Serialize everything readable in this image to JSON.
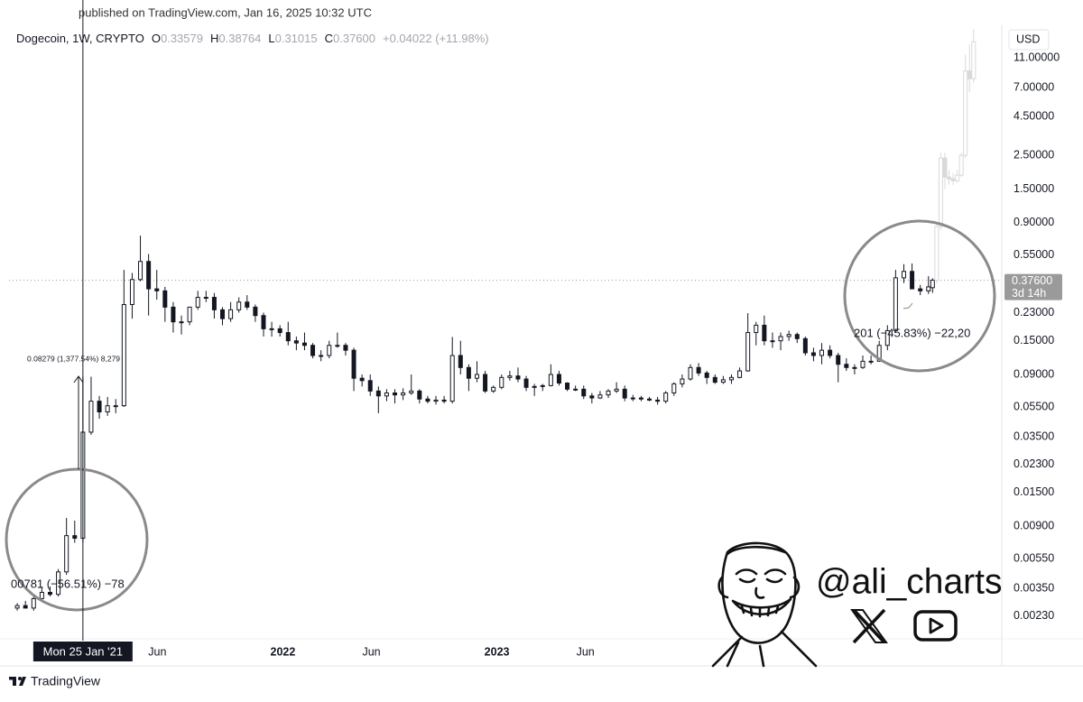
{
  "header": "published on TradingView.com, Jan 16, 2025 10:32 UTC",
  "footer": "TradingView",
  "watermark": "@ali_charts",
  "chart_data": {
    "type": "candlestick",
    "log_scale": true,
    "grid": false,
    "currency": "USD",
    "legend": {
      "symbol": "Dogecoin, 1W, CRYPTO",
      "items": [
        {
          "key": "O",
          "value": 0.33579
        },
        {
          "key": "H",
          "value": 0.38764
        },
        {
          "key": "L",
          "value": 0.31015
        },
        {
          "key": "C",
          "value": 0.376,
          "label": "0.37600"
        }
      ],
      "change": "+0.04022 (+11.98%)"
    },
    "last_price": {
      "value": 0.376,
      "label": "0.37600",
      "countdown": "3d 14h"
    },
    "crosshair": {
      "x": "2021-01-25",
      "label": "Mon 25 Jan '21"
    },
    "annotations": [
      {
        "text": "0.08279 (1,377.54%) 8,279"
      },
      {
        "text": "00781 (−56.51%) −78"
      },
      {
        "text": "201 (−45.83%) −22,20"
      }
    ],
    "xlim": [
      "2020-09-21",
      "2025-05-11"
    ],
    "xticks": [
      {
        "value": "2021-06-01",
        "label": "Jun"
      },
      {
        "value": "2022-01-01",
        "label": "2022"
      },
      {
        "value": "2022-06-01",
        "label": "Jun"
      },
      {
        "value": "2023-01-01",
        "label": "2023"
      },
      {
        "value": "2023-06-01",
        "label": "Jun"
      }
    ],
    "ylim": [
      0.00163,
      18
    ],
    "yticks": [
      {
        "value": 11,
        "label": "11.00000"
      },
      {
        "value": 7,
        "label": "7.00000"
      },
      {
        "value": 4.5,
        "label": "4.50000"
      },
      {
        "value": 2.5,
        "label": "2.50000"
      },
      {
        "value": 1.5,
        "label": "1.50000"
      },
      {
        "value": 0.9,
        "label": "0.90000"
      },
      {
        "value": 0.55,
        "label": "0.55000"
      },
      {
        "value": 0.23,
        "label": "0.23000"
      },
      {
        "value": 0.15,
        "label": "0.15000"
      },
      {
        "value": 0.09,
        "label": "0.09000"
      },
      {
        "value": 0.055,
        "label": "0.05500"
      },
      {
        "value": 0.035,
        "label": "0.03500"
      },
      {
        "value": 0.023,
        "label": "0.02300"
      },
      {
        "value": 0.015,
        "label": "0.01500"
      },
      {
        "value": 0.009,
        "label": "0.00900"
      },
      {
        "value": 0.0055,
        "label": "0.00550"
      },
      {
        "value": 0.0035,
        "label": "0.00350"
      },
      {
        "value": 0.0023,
        "label": "0.00230"
      }
    ],
    "series": [
      {
        "color": "#131722",
        "up_fill": "#ffffff",
        "x": [
          "2020-10-05",
          "2020-10-19",
          "2020-11-02",
          "2020-11-16",
          "2020-11-30",
          "2020-12-14",
          "2020-12-28",
          "2021-01-11",
          "2021-01-25",
          "2021-02-08",
          "2021-02-22",
          "2021-03-08",
          "2021-03-22",
          "2021-04-05",
          "2021-04-19",
          "2021-05-03",
          "2021-05-17",
          "2021-05-31",
          "2021-06-14",
          "2021-06-28",
          "2021-07-12",
          "2021-07-26",
          "2021-08-09",
          "2021-08-23",
          "2021-09-06",
          "2021-09-20",
          "2021-10-04",
          "2021-10-18",
          "2021-11-01",
          "2021-11-15",
          "2021-11-29",
          "2021-12-13",
          "2021-12-27",
          "2022-01-10",
          "2022-01-24",
          "2022-02-07",
          "2022-02-21",
          "2022-03-07",
          "2022-03-21",
          "2022-04-04",
          "2022-04-18",
          "2022-05-02",
          "2022-05-16",
          "2022-05-30",
          "2022-06-13",
          "2022-06-27",
          "2022-07-11",
          "2022-07-25",
          "2022-08-08",
          "2022-08-22",
          "2022-09-05",
          "2022-09-19",
          "2022-10-03",
          "2022-10-17",
          "2022-10-31",
          "2022-11-14",
          "2022-11-28",
          "2022-12-12",
          "2022-12-26",
          "2023-01-09",
          "2023-01-23",
          "2023-02-06",
          "2023-02-20",
          "2023-03-06",
          "2023-03-20",
          "2023-04-03",
          "2023-04-17",
          "2023-05-01",
          "2023-05-15",
          "2023-05-29",
          "2023-06-12",
          "2023-06-26",
          "2023-07-10",
          "2023-07-24",
          "2023-08-07",
          "2023-08-21",
          "2023-09-04",
          "2023-09-18",
          "2023-10-02",
          "2023-10-16",
          "2023-10-30",
          "2023-11-13",
          "2023-11-27",
          "2023-12-11",
          "2023-12-25",
          "2024-01-08",
          "2024-01-22",
          "2024-02-05",
          "2024-02-19",
          "2024-03-04",
          "2024-03-18",
          "2024-04-01",
          "2024-04-15",
          "2024-04-29",
          "2024-05-13",
          "2024-05-27",
          "2024-06-10",
          "2024-06-24",
          "2024-07-08",
          "2024-07-22",
          "2024-08-05",
          "2024-08-19",
          "2024-09-02",
          "2024-09-16",
          "2024-09-30",
          "2024-10-14",
          "2024-10-28",
          "2024-11-11",
          "2024-11-25",
          "2024-12-09",
          "2024-12-23",
          "2025-01-06",
          "2025-01-13"
        ],
        "ohlc": [
          [
            0.0026,
            0.0028,
            0.0025,
            0.0027
          ],
          [
            0.0027,
            0.0029,
            0.0026,
            0.0026
          ],
          [
            0.0026,
            0.0031,
            0.0025,
            0.003
          ],
          [
            0.003,
            0.0036,
            0.0029,
            0.0033
          ],
          [
            0.0033,
            0.0036,
            0.0031,
            0.0032
          ],
          [
            0.0032,
            0.0047,
            0.0031,
            0.0045
          ],
          [
            0.0045,
            0.0102,
            0.0043,
            0.0078
          ],
          [
            0.0078,
            0.0098,
            0.007,
            0.0075
          ],
          [
            0.0075,
            0.087,
            0.007,
            0.0375
          ],
          [
            0.0375,
            0.087,
            0.036,
            0.06
          ],
          [
            0.06,
            0.065,
            0.046,
            0.051
          ],
          [
            0.051,
            0.064,
            0.048,
            0.056
          ],
          [
            0.056,
            0.062,
            0.05,
            0.056
          ],
          [
            0.056,
            0.44,
            0.055,
            0.26
          ],
          [
            0.26,
            0.42,
            0.21,
            0.38
          ],
          [
            0.38,
            0.74,
            0.37,
            0.5
          ],
          [
            0.5,
            0.56,
            0.22,
            0.33
          ],
          [
            0.33,
            0.44,
            0.28,
            0.32
          ],
          [
            0.32,
            0.34,
            0.2,
            0.25
          ],
          [
            0.25,
            0.27,
            0.17,
            0.2
          ],
          [
            0.2,
            0.22,
            0.165,
            0.2
          ],
          [
            0.2,
            0.22,
            0.19,
            0.25
          ],
          [
            0.25,
            0.32,
            0.24,
            0.29
          ],
          [
            0.29,
            0.32,
            0.27,
            0.29
          ],
          [
            0.29,
            0.31,
            0.21,
            0.24
          ],
          [
            0.24,
            0.25,
            0.19,
            0.21
          ],
          [
            0.21,
            0.27,
            0.2,
            0.24
          ],
          [
            0.24,
            0.29,
            0.23,
            0.27
          ],
          [
            0.27,
            0.3,
            0.24,
            0.25
          ],
          [
            0.25,
            0.26,
            0.2,
            0.22
          ],
          [
            0.22,
            0.23,
            0.16,
            0.18
          ],
          [
            0.18,
            0.2,
            0.16,
            0.18
          ],
          [
            0.18,
            0.19,
            0.16,
            0.17
          ],
          [
            0.17,
            0.2,
            0.14,
            0.15
          ],
          [
            0.15,
            0.16,
            0.13,
            0.145
          ],
          [
            0.145,
            0.17,
            0.13,
            0.14
          ],
          [
            0.14,
            0.145,
            0.115,
            0.12
          ],
          [
            0.12,
            0.13,
            0.11,
            0.12
          ],
          [
            0.12,
            0.15,
            0.115,
            0.14
          ],
          [
            0.14,
            0.17,
            0.135,
            0.14
          ],
          [
            0.14,
            0.145,
            0.12,
            0.13
          ],
          [
            0.13,
            0.135,
            0.07,
            0.085
          ],
          [
            0.085,
            0.09,
            0.075,
            0.082
          ],
          [
            0.082,
            0.09,
            0.065,
            0.07
          ],
          [
            0.07,
            0.075,
            0.05,
            0.065
          ],
          [
            0.065,
            0.072,
            0.06,
            0.068
          ],
          [
            0.068,
            0.072,
            0.058,
            0.066
          ],
          [
            0.066,
            0.073,
            0.061,
            0.068
          ],
          [
            0.068,
            0.09,
            0.066,
            0.07
          ],
          [
            0.07,
            0.072,
            0.058,
            0.062
          ],
          [
            0.062,
            0.065,
            0.058,
            0.06
          ],
          [
            0.06,
            0.065,
            0.057,
            0.061
          ],
          [
            0.061,
            0.065,
            0.058,
            0.06
          ],
          [
            0.06,
            0.159,
            0.058,
            0.12
          ],
          [
            0.12,
            0.15,
            0.09,
            0.1
          ],
          [
            0.1,
            0.105,
            0.07,
            0.085
          ],
          [
            0.085,
            0.11,
            0.08,
            0.09
          ],
          [
            0.09,
            0.095,
            0.068,
            0.07
          ],
          [
            0.07,
            0.076,
            0.068,
            0.074
          ],
          [
            0.074,
            0.09,
            0.072,
            0.086
          ],
          [
            0.086,
            0.095,
            0.082,
            0.088
          ],
          [
            0.088,
            0.1,
            0.08,
            0.084
          ],
          [
            0.084,
            0.088,
            0.07,
            0.074
          ],
          [
            0.074,
            0.078,
            0.065,
            0.075
          ],
          [
            0.075,
            0.078,
            0.07,
            0.076
          ],
          [
            0.076,
            0.105,
            0.075,
            0.09
          ],
          [
            0.09,
            0.095,
            0.076,
            0.079
          ],
          [
            0.079,
            0.08,
            0.07,
            0.072
          ],
          [
            0.072,
            0.076,
            0.07,
            0.072
          ],
          [
            0.072,
            0.076,
            0.062,
            0.065
          ],
          [
            0.065,
            0.068,
            0.058,
            0.063
          ],
          [
            0.063,
            0.07,
            0.062,
            0.066
          ],
          [
            0.066,
            0.072,
            0.063,
            0.07
          ],
          [
            0.07,
            0.08,
            0.068,
            0.072
          ],
          [
            0.072,
            0.076,
            0.06,
            0.063
          ],
          [
            0.063,
            0.066,
            0.06,
            0.063
          ],
          [
            0.063,
            0.065,
            0.06,
            0.062
          ],
          [
            0.062,
            0.064,
            0.06,
            0.061
          ],
          [
            0.061,
            0.064,
            0.057,
            0.06
          ],
          [
            0.06,
            0.07,
            0.058,
            0.068
          ],
          [
            0.068,
            0.08,
            0.065,
            0.078
          ],
          [
            0.078,
            0.09,
            0.074,
            0.084
          ],
          [
            0.084,
            0.105,
            0.082,
            0.1
          ],
          [
            0.1,
            0.107,
            0.088,
            0.092
          ],
          [
            0.092,
            0.095,
            0.078,
            0.086
          ],
          [
            0.086,
            0.09,
            0.078,
            0.08
          ],
          [
            0.08,
            0.088,
            0.078,
            0.083
          ],
          [
            0.083,
            0.09,
            0.078,
            0.086
          ],
          [
            0.086,
            0.1,
            0.085,
            0.095
          ],
          [
            0.095,
            0.228,
            0.094,
            0.17
          ],
          [
            0.17,
            0.2,
            0.14,
            0.19
          ],
          [
            0.19,
            0.22,
            0.14,
            0.15
          ],
          [
            0.15,
            0.17,
            0.135,
            0.15
          ],
          [
            0.15,
            0.17,
            0.13,
            0.16
          ],
          [
            0.16,
            0.175,
            0.15,
            0.165
          ],
          [
            0.165,
            0.17,
            0.145,
            0.155
          ],
          [
            0.155,
            0.16,
            0.12,
            0.125
          ],
          [
            0.125,
            0.135,
            0.11,
            0.12
          ],
          [
            0.12,
            0.145,
            0.105,
            0.13
          ],
          [
            0.13,
            0.14,
            0.115,
            0.12
          ],
          [
            0.12,
            0.125,
            0.08,
            0.105
          ],
          [
            0.105,
            0.115,
            0.095,
            0.1
          ],
          [
            0.1,
            0.105,
            0.09,
            0.1
          ],
          [
            0.1,
            0.12,
            0.098,
            0.11
          ],
          [
            0.11,
            0.12,
            0.105,
            0.11
          ],
          [
            0.11,
            0.15,
            0.11,
            0.14
          ],
          [
            0.14,
            0.19,
            0.13,
            0.175
          ],
          [
            0.175,
            0.44,
            0.17,
            0.39
          ],
          [
            0.39,
            0.48,
            0.36,
            0.43
          ],
          [
            0.43,
            0.485,
            0.35,
            0.33
          ],
          [
            0.33,
            0.35,
            0.3,
            0.32
          ],
          [
            0.32,
            0.4,
            0.305,
            0.34
          ],
          [
            0.33579,
            0.38764,
            0.31015,
            0.376
          ]
        ]
      },
      {
        "color": "#d9d9d9",
        "up_fill": "#ffffff",
        "x": [
          "2025-01-20",
          "2025-01-27",
          "2025-02-03",
          "2025-02-10",
          "2025-02-17",
          "2025-02-24",
          "2025-03-03",
          "2025-03-10",
          "2025-03-17",
          "2025-03-24"
        ],
        "ohlc": [
          [
            0.376,
            0.9,
            0.36,
            0.85
          ],
          [
            0.85,
            2.6,
            0.8,
            2.4
          ],
          [
            2.4,
            2.6,
            1.5,
            1.8
          ],
          [
            1.8,
            2,
            1.6,
            1.75
          ],
          [
            1.75,
            1.9,
            1.6,
            1.7
          ],
          [
            1.7,
            2,
            1.65,
            1.85
          ],
          [
            1.85,
            2.6,
            1.8,
            2.5
          ],
          [
            2.5,
            11.5,
            2.4,
            9
          ],
          [
            9,
            13.5,
            6.5,
            8
          ],
          [
            8,
            17,
            7.5,
            14
          ]
        ]
      }
    ]
  }
}
